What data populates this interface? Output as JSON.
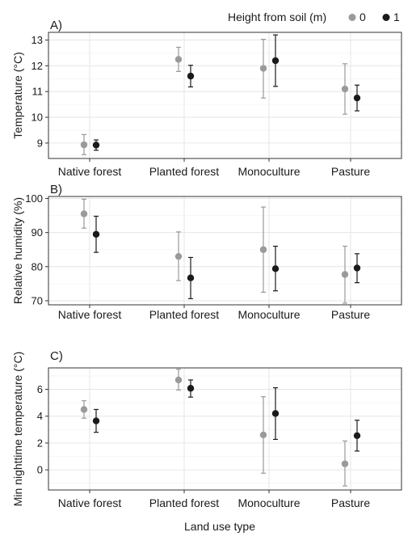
{
  "legend": {
    "title": "Height from soil (m)",
    "items": [
      {
        "label": "0",
        "color": "#9a9a9a"
      },
      {
        "label": "1",
        "color": "#1a1a1a"
      }
    ]
  },
  "xlabel": "Land use type",
  "chart_data": [
    {
      "type": "scatter",
      "panel": "A)",
      "ylabel": "Temperature (°C)",
      "categories": [
        "Native forest",
        "Planted forest",
        "Monoculture",
        "Pasture"
      ],
      "ylim": [
        8.4,
        13.3
      ],
      "yticks": [
        9,
        10,
        11,
        12,
        13
      ],
      "grid": true,
      "series": [
        {
          "name": "0",
          "values": [
            8.93,
            12.25,
            11.9,
            11.1
          ],
          "low": [
            8.55,
            11.78,
            10.75,
            10.12
          ],
          "high": [
            9.33,
            12.72,
            13.03,
            12.08
          ]
        },
        {
          "name": "1",
          "values": [
            8.92,
            11.6,
            12.2,
            10.75
          ],
          "low": [
            8.72,
            11.18,
            11.2,
            10.25
          ],
          "high": [
            9.12,
            12.02,
            13.2,
            11.25
          ]
        }
      ]
    },
    {
      "type": "scatter",
      "panel": "B)",
      "ylabel": "Relative humidity (%)",
      "categories": [
        "Native forest",
        "Planted forest",
        "Monoculture",
        "Pasture"
      ],
      "ylim": [
        68.8,
        100.6
      ],
      "yticks": [
        70,
        80,
        90,
        100
      ],
      "grid": true,
      "series": [
        {
          "name": "0",
          "values": [
            95.5,
            83.0,
            85.0,
            77.7
          ],
          "low": [
            91.3,
            75.9,
            72.5,
            69.3
          ],
          "high": [
            99.8,
            90.2,
            97.5,
            86.0
          ]
        },
        {
          "name": "1",
          "values": [
            89.5,
            76.7,
            79.4,
            79.6
          ],
          "low": [
            84.2,
            70.6,
            72.9,
            75.3
          ],
          "high": [
            94.8,
            82.7,
            86.0,
            83.8
          ]
        }
      ]
    },
    {
      "type": "scatter",
      "panel": "C)",
      "ylabel": "Min nighttime temperature (°C)",
      "categories": [
        "Native forest",
        "Planted forest",
        "Monoculture",
        "Pasture"
      ],
      "ylim": [
        -1.5,
        7.6
      ],
      "yticks": [
        0,
        2,
        4,
        6
      ],
      "grid": true,
      "series": [
        {
          "name": "0",
          "values": [
            4.5,
            6.7,
            2.6,
            0.45
          ],
          "low": [
            3.85,
            5.95,
            -0.25,
            -1.2
          ],
          "high": [
            5.15,
            7.5,
            5.45,
            2.15
          ]
        },
        {
          "name": "1",
          "values": [
            3.65,
            6.08,
            4.2,
            2.55
          ],
          "low": [
            2.8,
            5.42,
            2.27,
            1.4
          ],
          "high": [
            4.5,
            6.7,
            6.12,
            3.7
          ]
        }
      ]
    }
  ]
}
